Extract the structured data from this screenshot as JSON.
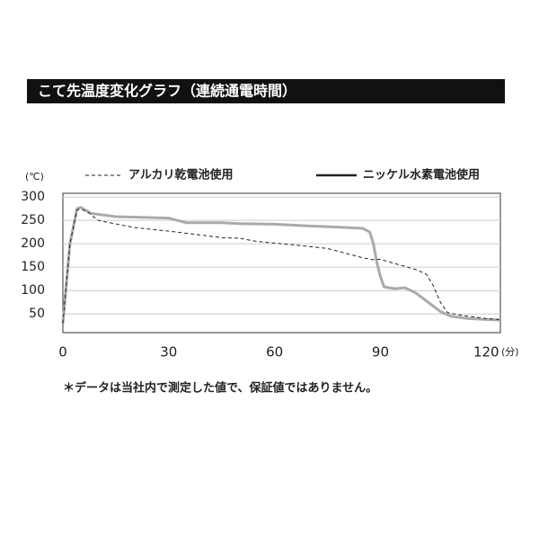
{
  "chart_data": {
    "type": "line",
    "title": "こて先温度変化グラフ（連続通電時間）",
    "y_unit": "(℃)",
    "x_unit": "(分)",
    "note": "＊データは当社内で測定した値で、保証値ではありません。",
    "xlim": [
      0,
      124
    ],
    "xticks": [
      0,
      30,
      60,
      90,
      120
    ],
    "ylim": [
      10,
      308
    ],
    "yticks": [
      50,
      100,
      150,
      200,
      250,
      300
    ],
    "grid": true,
    "series": [
      {
        "name": "アルカリ乾電池使用",
        "color": "#222222",
        "dash": true,
        "x": [
          0,
          2,
          4,
          5,
          7,
          10,
          20,
          30,
          40,
          45,
          50,
          55,
          65,
          75,
          80,
          85,
          88,
          90,
          93,
          100,
          103,
          105,
          107,
          109,
          112,
          120,
          124
        ],
        "values": [
          30,
          200,
          272,
          275,
          268,
          250,
          235,
          227,
          218,
          213,
          212,
          205,
          198,
          190,
          180,
          170,
          166,
          167,
          160,
          145,
          135,
          110,
          75,
          53,
          48,
          40,
          38
        ]
      },
      {
        "name": "ニッケル水素電池使用",
        "color": "#aaaaaa",
        "dash": false,
        "x": [
          0,
          2,
          4,
          5,
          8,
          15,
          20,
          30,
          35,
          45,
          50,
          60,
          70,
          80,
          85,
          87,
          88,
          89,
          90,
          91,
          94,
          97,
          100,
          103,
          107,
          110,
          115,
          120,
          124
        ],
        "values": [
          30,
          200,
          275,
          278,
          265,
          258,
          257,
          255,
          245,
          245,
          243,
          242,
          238,
          235,
          233,
          225,
          200,
          160,
          130,
          108,
          104,
          106,
          95,
          78,
          55,
          45,
          40,
          38,
          37
        ]
      }
    ]
  }
}
